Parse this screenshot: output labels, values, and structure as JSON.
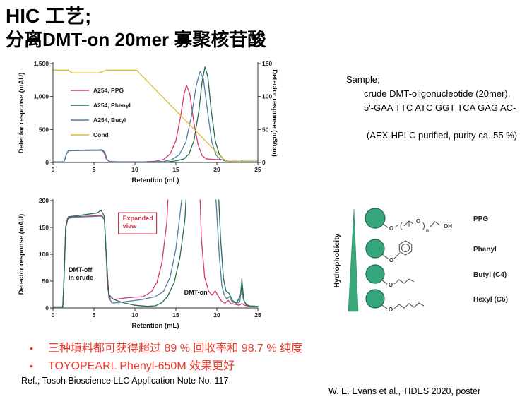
{
  "title": {
    "line1": "HIC 工艺;",
    "line2": "分离DMT-on 20mer 寡聚核苷酸"
  },
  "sample_panel": {
    "heading": "Sample;",
    "lines": [
      "crude DMT-oligonucleotide (20mer),",
      "5'-GAA TTC ATC GGT TCA GAG AC-",
      "(AEX-HPLC purified, purity ca. 55 %)"
    ]
  },
  "ligand_panel": {
    "hydrophobicity_label": "Hydrophobicity",
    "atom_o": "O",
    "atom_oh": "OH",
    "atom_n": "n",
    "paren_open": "(",
    "paren_close": ")",
    "ligands": [
      {
        "label": "PPG"
      },
      {
        "label": "Phenyl"
      },
      {
        "label": "Butyl (C4)"
      },
      {
        "label": "Hexyl (C6)"
      }
    ]
  },
  "bullets": [
    {
      "marker": "•",
      "text": "三种填料都可获得超过 89 % 回收率和 98.7 % 纯度"
    },
    {
      "marker": "•",
      "text": "TOYOPEARL Phenyl-650M 效果更好"
    }
  ],
  "reference": "Ref.; Tosoh Bioscience LLC Application Note No. 117",
  "citation": "W. E. Evans et al., TIDES 2020, poster",
  "colors": {
    "ppg": "#d23a69",
    "phenyl": "#256e4c",
    "butyl": "#517fa4",
    "cond": "#e0b93a",
    "accent_red": "#e8392c",
    "annotation_red": "#c6394a",
    "bead_green": "#36a67c"
  },
  "chart_data": [
    {
      "type": "line",
      "title": "",
      "xlabel": "Retention (mL)",
      "ylabel_left": "Detector response (mAU)",
      "ylabel_right": "Detector response (mS/cm)",
      "xlim": [
        0,
        25
      ],
      "xticks": [
        0,
        5,
        10,
        15,
        20,
        25
      ],
      "ylim_left": [
        0,
        1500
      ],
      "yticks_left": [
        {
          "v": 0,
          "label": "0"
        },
        {
          "v": 500,
          "label": "500"
        },
        {
          "v": 1000,
          "label": "1,000"
        },
        {
          "v": 1500,
          "label": "1,500"
        }
      ],
      "ylim_right": [
        0,
        150
      ],
      "yticks_right": [
        {
          "v": 0,
          "label": "0"
        },
        {
          "v": 50,
          "label": "50"
        },
        {
          "v": 100,
          "label": "100"
        },
        {
          "v": 150,
          "label": "150"
        }
      ],
      "legend": {
        "position": "inside-left"
      },
      "grid": false,
      "series": [
        {
          "name": "A254, PPG",
          "color": "#d23a69",
          "axis": "left",
          "points": [
            [
              0,
              8
            ],
            [
              1.3,
              8
            ],
            [
              1.45,
              45
            ],
            [
              1.65,
              130
            ],
            [
              1.9,
              176
            ],
            [
              3,
              180
            ],
            [
              5.9,
              183
            ],
            [
              6.2,
              158
            ],
            [
              6.5,
              55
            ],
            [
              6.8,
              18
            ],
            [
              7.5,
              12
            ],
            [
              11,
              10
            ],
            [
              12.5,
              18
            ],
            [
              13.5,
              45
            ],
            [
              14.3,
              130
            ],
            [
              15,
              330
            ],
            [
              15.6,
              720
            ],
            [
              16,
              1040
            ],
            [
              16.3,
              1170
            ],
            [
              16.7,
              1040
            ],
            [
              17.2,
              600
            ],
            [
              17.7,
              270
            ],
            [
              18.2,
              105
            ],
            [
              18.7,
              55
            ],
            [
              19.5,
              46
            ],
            [
              20.6,
              42
            ],
            [
              21.1,
              28
            ],
            [
              21.5,
              12
            ],
            [
              22.5,
              8
            ],
            [
              25,
              6
            ]
          ]
        },
        {
          "name": "A254, Phenyl",
          "color": "#256e4c",
          "axis": "left",
          "points": [
            [
              0,
              8
            ],
            [
              1.3,
              8
            ],
            [
              1.45,
              45
            ],
            [
              1.65,
              132
            ],
            [
              1.9,
              181
            ],
            [
              3,
              186
            ],
            [
              5.6,
              190
            ],
            [
              5.95,
              193
            ],
            [
              6.3,
              160
            ],
            [
              6.6,
              45
            ],
            [
              6.9,
              14
            ],
            [
              8,
              8
            ],
            [
              10.5,
              4
            ],
            [
              12.5,
              4
            ],
            [
              14,
              10
            ],
            [
              15,
              22
            ],
            [
              16,
              55
            ],
            [
              16.6,
              130
            ],
            [
              17.2,
              330
            ],
            [
              17.8,
              780
            ],
            [
              18.2,
              1230
            ],
            [
              18.55,
              1450
            ],
            [
              18.9,
              1300
            ],
            [
              19.3,
              800
            ],
            [
              19.8,
              330
            ],
            [
              20.3,
              120
            ],
            [
              20.8,
              50
            ],
            [
              21.3,
              22
            ],
            [
              22,
              10
            ],
            [
              23,
              8
            ],
            [
              25,
              6
            ]
          ]
        },
        {
          "name": "A254, Butyl",
          "color": "#517fa4",
          "axis": "left",
          "points": [
            [
              0,
              8
            ],
            [
              1.3,
              8
            ],
            [
              1.45,
              45
            ],
            [
              1.65,
              128
            ],
            [
              1.9,
              178
            ],
            [
              3,
              182
            ],
            [
              5.9,
              186
            ],
            [
              6.3,
              156
            ],
            [
              6.6,
              45
            ],
            [
              6.9,
              14
            ],
            [
              8,
              9
            ],
            [
              12,
              9
            ],
            [
              13.5,
              16
            ],
            [
              14.5,
              42
            ],
            [
              15.4,
              115
            ],
            [
              16.2,
              300
            ],
            [
              16.9,
              700
            ],
            [
              17.5,
              1180
            ],
            [
              17.95,
              1380
            ],
            [
              18.35,
              1270
            ],
            [
              18.9,
              740
            ],
            [
              19.4,
              300
            ],
            [
              19.9,
              115
            ],
            [
              20.4,
              48
            ],
            [
              21,
              22
            ],
            [
              21.8,
              10
            ],
            [
              22.9,
              10
            ],
            [
              23.05,
              30
            ],
            [
              23.2,
              10
            ],
            [
              24,
              6
            ],
            [
              25,
              6
            ]
          ]
        },
        {
          "name": "Cond",
          "color": "#e0b93a",
          "axis": "right",
          "points": [
            [
              0,
              140
            ],
            [
              1.9,
              140
            ],
            [
              2.3,
              136
            ],
            [
              5.6,
              136
            ],
            [
              6.3,
              139
            ],
            [
              6.6,
              140
            ],
            [
              10.2,
              140
            ],
            [
              20.7,
              6
            ],
            [
              21.2,
              2
            ],
            [
              25,
              2
            ]
          ]
        }
      ]
    },
    {
      "type": "line",
      "title": "",
      "xlabel": "Retention (mL)",
      "ylabel_left": "Detector response (mAU)",
      "xlim": [
        0,
        25
      ],
      "xticks": [
        0,
        5,
        10,
        15,
        20,
        25
      ],
      "ylim_left": [
        0,
        200
      ],
      "yticks_left": [
        {
          "v": 0,
          "label": "0"
        },
        {
          "v": 50,
          "label": "50"
        },
        {
          "v": 100,
          "label": "100"
        },
        {
          "v": 150,
          "label": "150"
        },
        {
          "v": 200,
          "label": "200"
        }
      ],
      "grid": false,
      "annotations": [
        {
          "lines": [
            "Expanded",
            "view"
          ],
          "x": 8.5,
          "y": 163,
          "color": "#c6394a",
          "box": true
        },
        {
          "lines": [
            "DMT-off",
            "in crude"
          ],
          "x": 1.9,
          "y": 67,
          "color": "#111111",
          "box": false
        },
        {
          "lines": [
            "DMT-on"
          ],
          "x": 16.0,
          "y": 25,
          "color": "#111111",
          "box": false
        }
      ],
      "series": [
        {
          "name": "A254, PPG",
          "color": "#d23a69",
          "axis": "left",
          "points": [
            [
              0,
              2
            ],
            [
              1.2,
              2
            ],
            [
              1.35,
              60
            ],
            [
              1.55,
              152
            ],
            [
              1.8,
              168
            ],
            [
              2.5,
              170
            ],
            [
              5.9,
              172
            ],
            [
              6.25,
              168
            ],
            [
              6.45,
              115
            ],
            [
              6.65,
              38
            ],
            [
              7,
              17
            ],
            [
              7.6,
              16
            ],
            [
              9,
              19
            ],
            [
              11,
              21
            ],
            [
              12,
              30
            ],
            [
              12.7,
              48
            ],
            [
              13.3,
              85
            ],
            [
              13.9,
              160
            ],
            [
              14.6,
              400
            ],
            [
              15.6,
              900
            ],
            [
              16.3,
              1170
            ],
            [
              17,
              750
            ],
            [
              17.7,
              330
            ],
            [
              18.1,
              130
            ],
            [
              18.5,
              58
            ],
            [
              19,
              31
            ],
            [
              19.4,
              24
            ],
            [
              19.8,
              32
            ],
            [
              20.2,
              21
            ],
            [
              20.6,
              12
            ],
            [
              21,
              9
            ],
            [
              21.4,
              14
            ],
            [
              21.7,
              8
            ],
            [
              22.2,
              7
            ],
            [
              22.7,
              5
            ],
            [
              23.05,
              8
            ],
            [
              23.4,
              5
            ],
            [
              24,
              3
            ],
            [
              25,
              3
            ]
          ]
        },
        {
          "name": "A254, Butyl",
          "color": "#517fa4",
          "axis": "left",
          "points": [
            [
              0,
              2
            ],
            [
              1.2,
              2
            ],
            [
              1.35,
              55
            ],
            [
              1.55,
              148
            ],
            [
              1.8,
              166
            ],
            [
              2.5,
              169
            ],
            [
              5.9,
              171
            ],
            [
              6.3,
              164
            ],
            [
              6.5,
              95
            ],
            [
              6.8,
              20
            ],
            [
              7.2,
              9
            ],
            [
              8,
              10
            ],
            [
              9.5,
              13
            ],
            [
              11,
              16
            ],
            [
              12.5,
              21
            ],
            [
              13.5,
              31
            ],
            [
              14.3,
              58
            ],
            [
              15,
              110
            ],
            [
              15.7,
              200
            ],
            [
              16.5,
              420
            ],
            [
              17.5,
              1180
            ],
            [
              17.95,
              1380
            ],
            [
              18.4,
              1270
            ],
            [
              19.2,
              600
            ],
            [
              19.9,
              200
            ],
            [
              20.3,
              95
            ],
            [
              20.6,
              42
            ],
            [
              20.9,
              24
            ],
            [
              21.2,
              17
            ],
            [
              21.5,
              21
            ],
            [
              21.9,
              11
            ],
            [
              22.4,
              9
            ],
            [
              22.8,
              11
            ],
            [
              23.05,
              55
            ],
            [
              23.2,
              18
            ],
            [
              23.5,
              7
            ],
            [
              24,
              4
            ],
            [
              25,
              3
            ]
          ]
        },
        {
          "name": "A254, Phenyl",
          "color": "#256e4c",
          "axis": "left",
          "points": [
            [
              0,
              2
            ],
            [
              1.2,
              2
            ],
            [
              1.35,
              58
            ],
            [
              1.55,
              150
            ],
            [
              1.9,
              170
            ],
            [
              3,
              172
            ],
            [
              5.4,
              177
            ],
            [
              5.85,
              182
            ],
            [
              6.25,
              172
            ],
            [
              6.5,
              100
            ],
            [
              6.8,
              25
            ],
            [
              7.4,
              16
            ],
            [
              8.5,
              10
            ],
            [
              10,
              5
            ],
            [
              11.5,
              3
            ],
            [
              12.5,
              4
            ],
            [
              13.3,
              10
            ],
            [
              14,
              22
            ],
            [
              14.8,
              48
            ],
            [
              15.5,
              95
            ],
            [
              16.1,
              165
            ],
            [
              16.7,
              330
            ],
            [
              17.6,
              800
            ],
            [
              18.55,
              1450
            ],
            [
              19.3,
              800
            ],
            [
              20,
              280
            ],
            [
              20.45,
              130
            ],
            [
              20.8,
              55
            ],
            [
              21.1,
              32
            ],
            [
              21.5,
              27
            ],
            [
              21.9,
              14
            ],
            [
              22.4,
              9
            ],
            [
              22.9,
              24
            ],
            [
              23.08,
              46
            ],
            [
              23.3,
              14
            ],
            [
              23.6,
              6
            ],
            [
              24,
              3
            ],
            [
              25,
              2
            ]
          ]
        }
      ]
    }
  ]
}
